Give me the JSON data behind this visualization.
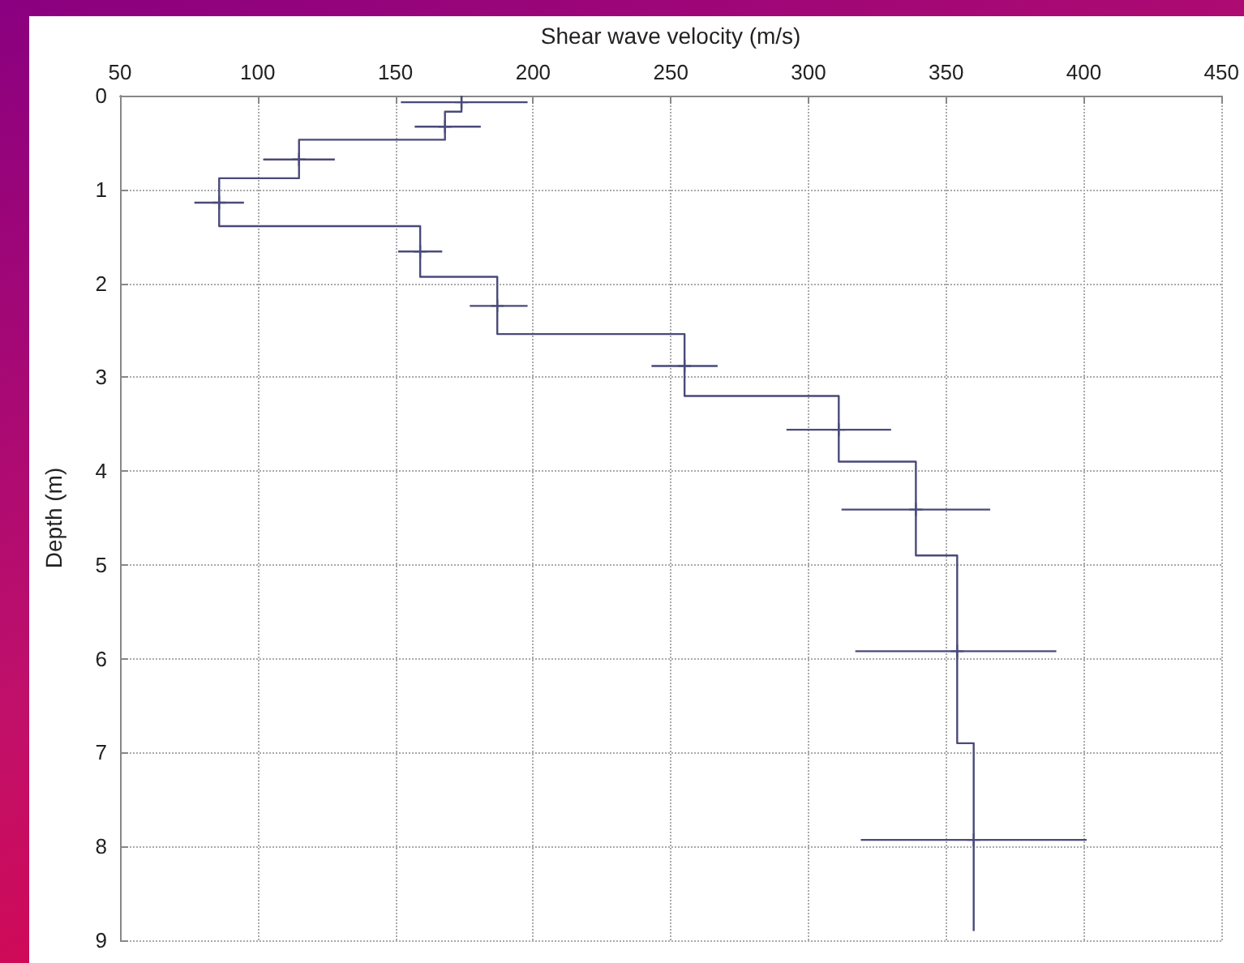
{
  "chart_data": {
    "type": "line",
    "xlabel": "Shear wave velocity (m/s)",
    "ylabel": "Depth (m)",
    "xlim": [
      50,
      450
    ],
    "xticks": [
      50,
      100,
      150,
      200,
      250,
      300,
      350,
      400,
      450
    ],
    "ylim": [
      9,
      0
    ],
    "yticks": [
      0,
      1,
      2,
      3,
      4,
      5,
      6,
      7,
      8,
      9
    ],
    "grid": true,
    "series": [
      {
        "marker": "none",
        "color": "#4a4a7a",
        "x": [
          174,
          174,
          168,
          168,
          115,
          115,
          86,
          86,
          159,
          159,
          187,
          187,
          255,
          255,
          311,
          311,
          339,
          339,
          354,
          354,
          360,
          360
        ],
        "values": [
          0,
          0.17,
          0.17,
          0.47,
          0.47,
          0.88,
          0.88,
          1.39,
          1.39,
          1.93,
          1.93,
          2.54,
          2.54,
          3.2,
          3.2,
          3.9,
          3.9,
          4.9,
          4.9,
          6.9,
          6.9,
          8.9
        ]
      },
      {
        "type": "scatter",
        "marker": "cross",
        "color": "#4a4a7a",
        "x": [
          174,
          168,
          115,
          86,
          159,
          187,
          255,
          311,
          339,
          354,
          360
        ],
        "values": [
          0.07,
          0.33,
          0.68,
          1.14,
          1.66,
          2.24,
          2.88,
          3.56,
          4.41,
          5.92,
          7.93
        ],
        "xerrors": [
          [
            152,
            198
          ],
          [
            157,
            181
          ],
          [
            102,
            128
          ],
          [
            77,
            95
          ],
          [
            151,
            167
          ],
          [
            177,
            198
          ],
          [
            243,
            267
          ],
          [
            292,
            330
          ],
          [
            312,
            366
          ],
          [
            317,
            390
          ],
          [
            319,
            401
          ]
        ]
      }
    ]
  }
}
